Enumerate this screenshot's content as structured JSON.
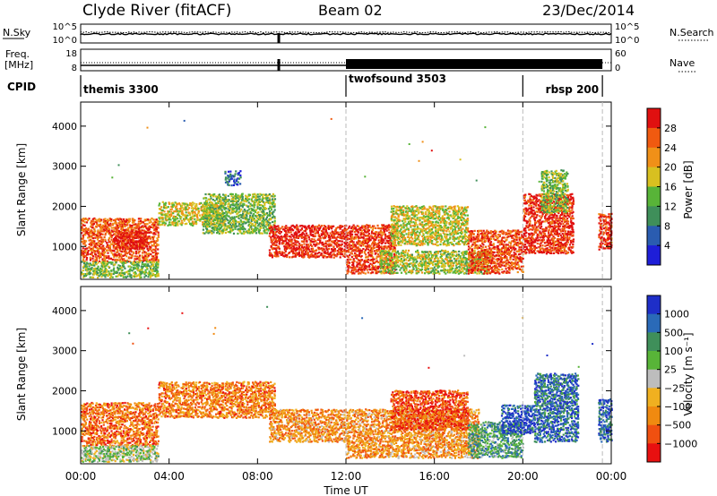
{
  "header": {
    "station": "Clyde River (fitACF)",
    "beam": "Beam 02",
    "date": "23/Dec/2014"
  },
  "noise_panel": {
    "left_label": "N.Sky",
    "left_ticks": [
      "10^5",
      "10^0"
    ],
    "right_label": "N.Search",
    "right_ticks": [
      "10^5",
      "10^0"
    ]
  },
  "freq_panel": {
    "left_label_1": "Freq.",
    "left_label_2": "[MHz]",
    "left_ticks": [
      "18",
      "8"
    ],
    "right_label": "Nave",
    "right_ticks": [
      "60",
      "0"
    ]
  },
  "cpid": {
    "label": "CPID",
    "segments": [
      {
        "name": "themis 3300",
        "start_hour": 0,
        "end_hour": 12
      },
      {
        "name": "twofsound 3503",
        "start_hour": 12,
        "end_hour": 20
      },
      {
        "name": "rbsp 200",
        "start_hour": 20,
        "end_hour": 24
      }
    ]
  },
  "colors": {
    "power": [
      "#1e1ed8",
      "#2a5cb0",
      "#3f8f5a",
      "#58b438",
      "#d8c020",
      "#f09018",
      "#f05a10",
      "#e01010"
    ],
    "velocity": [
      "#e81010",
      "#f05010",
      "#f08a10",
      "#f0b020",
      "#bdbdbd",
      "#58b438",
      "#3f8f5a",
      "#2a6ab8",
      "#1e2ec8"
    ]
  },
  "chart_data": [
    {
      "type": "heatmap",
      "name": "power",
      "xlabel": "",
      "ylabel": "Slant Range [km]",
      "xlim": [
        0,
        24
      ],
      "ylim": [
        180,
        4600
      ],
      "yticks": [
        "1000",
        "2000",
        "3000",
        "4000"
      ],
      "colorbar": {
        "label": "Power [dB]",
        "ticks": [
          "28",
          "24",
          "20",
          "16",
          "12",
          "8",
          "4"
        ],
        "range": [
          0,
          32
        ]
      },
      "scatter_bands": [
        {
          "t0": 0.0,
          "t1": 3.5,
          "r0": 600,
          "r1": 1700,
          "level": 0.82
        },
        {
          "t0": 0.0,
          "t1": 3.5,
          "r0": 200,
          "r1": 600,
          "level": 0.45
        },
        {
          "t0": 1.5,
          "t1": 3.0,
          "r0": 900,
          "r1": 1400,
          "level": 0.95
        },
        {
          "t0": 3.5,
          "t1": 6.5,
          "r0": 1500,
          "r1": 2100,
          "level": 0.55
        },
        {
          "t0": 5.5,
          "t1": 8.8,
          "r0": 1300,
          "r1": 2300,
          "level": 0.45
        },
        {
          "t0": 8.5,
          "t1": 12.0,
          "r0": 700,
          "r1": 1500,
          "level": 0.92
        },
        {
          "t0": 6.5,
          "t1": 7.2,
          "r0": 2500,
          "r1": 2850,
          "level": 0.2
        },
        {
          "t0": 12.0,
          "t1": 14.2,
          "r0": 300,
          "r1": 1500,
          "level": 0.88
        },
        {
          "t0": 13.5,
          "t1": 18.5,
          "r0": 300,
          "r1": 900,
          "level": 0.5
        },
        {
          "t0": 14.0,
          "t1": 17.5,
          "r0": 1000,
          "r1": 2000,
          "level": 0.55
        },
        {
          "t0": 17.5,
          "t1": 20.0,
          "r0": 300,
          "r1": 1400,
          "level": 0.85
        },
        {
          "t0": 20.0,
          "t1": 22.3,
          "r0": 800,
          "r1": 2300,
          "level": 0.9
        },
        {
          "t0": 20.8,
          "t1": 22.0,
          "r0": 1800,
          "r1": 2900,
          "level": 0.45
        },
        {
          "t0": 23.4,
          "t1": 24.0,
          "r0": 900,
          "r1": 1800,
          "level": 0.9
        }
      ]
    },
    {
      "type": "heatmap",
      "name": "velocity",
      "xlabel": "Time UT",
      "ylabel": "Slant Range [km]",
      "xlim": [
        0,
        24
      ],
      "ylim": [
        180,
        4600
      ],
      "xticks": [
        "00:00",
        "04:00",
        "08:00",
        "12:00",
        "16:00",
        "20:00",
        "00:00"
      ],
      "yticks": [
        "1000",
        "2000",
        "3000",
        "4000"
      ],
      "colorbar": {
        "label": "Velocity [m s⁻¹]",
        "ticks": [
          "1000",
          "500",
          "100",
          "25",
          "−25",
          "−100",
          "−500",
          "−1000"
        ],
        "range": [
          -1000,
          1000
        ]
      },
      "scatter_bands": [
        {
          "t0": 0.0,
          "t1": 3.5,
          "r0": 600,
          "r1": 1700,
          "level": 0.22
        },
        {
          "t0": 0.0,
          "t1": 3.5,
          "r0": 200,
          "r1": 600,
          "level": 0.55
        },
        {
          "t0": 3.5,
          "t1": 8.8,
          "r0": 1300,
          "r1": 2200,
          "level": 0.25
        },
        {
          "t0": 8.5,
          "t1": 12.0,
          "r0": 700,
          "r1": 1500,
          "level": 0.3
        },
        {
          "t0": 12.0,
          "t1": 18.0,
          "r0": 300,
          "r1": 1500,
          "level": 0.3
        },
        {
          "t0": 14.0,
          "t1": 17.5,
          "r0": 1000,
          "r1": 2000,
          "level": 0.15
        },
        {
          "t0": 17.5,
          "t1": 20.0,
          "r0": 300,
          "r1": 1200,
          "level": 0.68
        },
        {
          "t0": 19.0,
          "t1": 20.5,
          "r0": 900,
          "r1": 1600,
          "level": 0.9
        },
        {
          "t0": 20.5,
          "t1": 22.5,
          "r0": 700,
          "r1": 2400,
          "level": 0.82
        },
        {
          "t0": 23.4,
          "t1": 24.0,
          "r0": 700,
          "r1": 1800,
          "level": 0.85
        }
      ]
    }
  ]
}
